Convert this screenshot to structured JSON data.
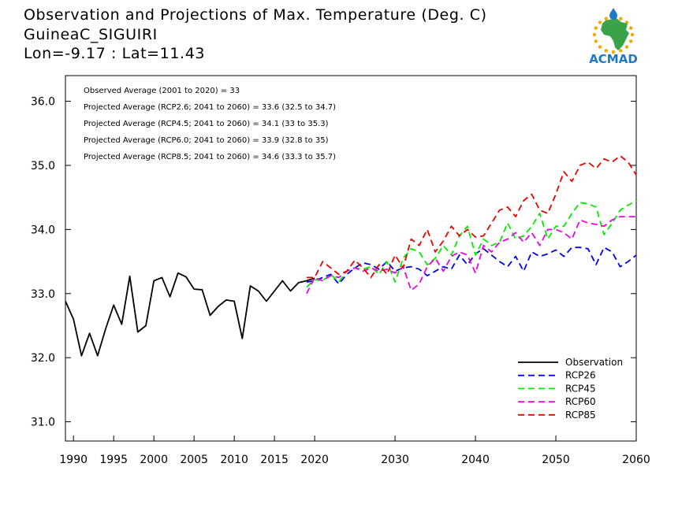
{
  "title": {
    "line1": "Observation and Projections of Max. Temperature (Deg. C)",
    "line2": "GuineaC_SIGUIRI",
    "line3": "Lon=-9.17 : Lat=11.43"
  },
  "logo": {
    "text": "ACMAD",
    "colors": {
      "africa": "#3aa34a",
      "ring": "#f2a900",
      "drop": "#1f77c9",
      "text": "#1f77c9"
    }
  },
  "chart_data": {
    "type": "line",
    "xlim": [
      1989,
      2060
    ],
    "ylim": [
      30.7,
      36.4
    ],
    "x_ticks": [
      1990,
      1995,
      2000,
      2005,
      2010,
      2015,
      2020,
      2030,
      2040,
      2050,
      2060
    ],
    "y_ticks": [
      31.0,
      32.0,
      33.0,
      34.0,
      35.0,
      36.0
    ],
    "y_tick_labels": [
      "31.0",
      "32.0",
      "33.0",
      "34.0",
      "35.0",
      "36.0"
    ],
    "annotations": [
      "Observed Average (2001 to 2020) = 33",
      "Projected Average (RCP2.6; 2041 to 2060) = 33.6 (32.5 to 34.7)",
      "Projected Average (RCP4.5; 2041 to 2060) = 34.1 (33 to 35.3)",
      "Projected Average (RCP6.0; 2041 to 2060) = 33.9 (32.8 to 35)",
      "Projected Average (RCP8.5; 2041 to 2060) = 34.6 (33.3 to 35.7)"
    ],
    "legend_position": "bottom-right",
    "series": [
      {
        "name": "Observation",
        "color": "#000000",
        "dash": false,
        "x": [
          1989,
          1990,
          1991,
          1992,
          1993,
          1994,
          1995,
          1996,
          1997,
          1998,
          1999,
          2000,
          2001,
          2002,
          2003,
          2004,
          2005,
          2006,
          2007,
          2008,
          2009,
          2010,
          2011,
          2012,
          2013,
          2014,
          2015,
          2016,
          2017,
          2018,
          2019,
          2020
        ],
        "values": [
          32.88,
          32.6,
          32.03,
          32.38,
          32.03,
          32.45,
          32.82,
          32.52,
          33.27,
          32.4,
          32.5,
          33.2,
          33.25,
          32.95,
          33.32,
          33.26,
          33.07,
          33.06,
          32.66,
          32.8,
          32.9,
          32.88,
          32.3,
          33.12,
          33.04,
          32.88,
          33.04,
          33.2,
          33.04,
          33.17,
          33.2,
          33.24
        ]
      },
      {
        "name": "RCP26",
        "color": "#0000ee",
        "dash": true,
        "x": [
          2019,
          2020,
          2021,
          2022,
          2023,
          2024,
          2025,
          2026,
          2027,
          2028,
          2029,
          2030,
          2031,
          2032,
          2033,
          2034,
          2035,
          2036,
          2037,
          2038,
          2039,
          2040,
          2041,
          2042,
          2043,
          2044,
          2045,
          2046,
          2047,
          2048,
          2049,
          2050,
          2051,
          2052,
          2053,
          2054,
          2055,
          2056,
          2057,
          2058,
          2059,
          2060
        ],
        "values": [
          33.18,
          33.2,
          33.25,
          33.3,
          33.15,
          33.3,
          33.4,
          33.48,
          33.45,
          33.38,
          33.5,
          33.35,
          33.4,
          33.42,
          33.38,
          33.28,
          33.35,
          33.42,
          33.38,
          33.6,
          33.45,
          33.62,
          33.7,
          33.6,
          33.5,
          33.42,
          33.58,
          33.35,
          33.65,
          33.58,
          33.62,
          33.68,
          33.58,
          33.72,
          33.72,
          33.7,
          33.45,
          33.72,
          33.65,
          33.42,
          33.5,
          33.6
        ]
      },
      {
        "name": "RCP45",
        "color": "#00ee00",
        "dash": true,
        "x": [
          2019,
          2020,
          2021,
          2022,
          2023,
          2024,
          2025,
          2026,
          2027,
          2028,
          2029,
          2030,
          2031,
          2032,
          2033,
          2034,
          2035,
          2036,
          2037,
          2038,
          2039,
          2040,
          2041,
          2042,
          2043,
          2044,
          2045,
          2046,
          2047,
          2048,
          2049,
          2050,
          2051,
          2052,
          2053,
          2054,
          2055,
          2056,
          2057,
          2058,
          2059,
          2060
        ],
        "values": [
          33.1,
          33.22,
          33.2,
          33.3,
          33.18,
          33.35,
          33.4,
          33.38,
          33.42,
          33.3,
          33.5,
          33.18,
          33.55,
          33.7,
          33.65,
          33.45,
          33.55,
          33.75,
          33.6,
          33.9,
          34.05,
          33.6,
          33.85,
          33.75,
          33.8,
          34.1,
          33.85,
          33.9,
          34.05,
          34.25,
          33.85,
          34.05,
          34.05,
          34.25,
          34.42,
          34.4,
          34.35,
          33.92,
          34.1,
          34.3,
          34.38,
          34.45
        ]
      },
      {
        "name": "RCP60",
        "color": "#ee00ee",
        "dash": true,
        "x": [
          2019,
          2020,
          2021,
          2022,
          2023,
          2024,
          2025,
          2026,
          2027,
          2028,
          2029,
          2030,
          2031,
          2032,
          2033,
          2034,
          2035,
          2036,
          2037,
          2038,
          2039,
          2040,
          2041,
          2042,
          2043,
          2044,
          2045,
          2046,
          2047,
          2048,
          2049,
          2050,
          2051,
          2052,
          2053,
          2054,
          2055,
          2056,
          2057,
          2058,
          2059,
          2060
        ],
        "values": [
          33.0,
          33.25,
          33.2,
          33.28,
          33.25,
          33.35,
          33.4,
          33.35,
          33.4,
          33.35,
          33.38,
          33.32,
          33.42,
          33.05,
          33.15,
          33.42,
          33.55,
          33.35,
          33.58,
          33.65,
          33.6,
          33.32,
          33.75,
          33.65,
          33.8,
          33.85,
          33.95,
          33.8,
          33.95,
          33.75,
          34.0,
          34.0,
          33.95,
          33.85,
          34.15,
          34.1,
          34.08,
          34.05,
          34.15,
          34.2,
          34.2,
          34.2
        ]
      },
      {
        "name": "RCP85",
        "color": "#ee0000",
        "dash": true,
        "x": [
          2019,
          2020,
          2021,
          2022,
          2023,
          2024,
          2025,
          2026,
          2027,
          2028,
          2029,
          2030,
          2031,
          2032,
          2033,
          2034,
          2035,
          2036,
          2037,
          2038,
          2039,
          2040,
          2041,
          2042,
          2043,
          2044,
          2045,
          2046,
          2047,
          2048,
          2049,
          2050,
          2051,
          2052,
          2053,
          2054,
          2055,
          2056,
          2057,
          2058,
          2059,
          2060
        ],
        "values": [
          33.25,
          33.25,
          33.5,
          33.4,
          33.3,
          33.35,
          33.52,
          33.4,
          33.25,
          33.45,
          33.3,
          33.6,
          33.4,
          33.85,
          33.75,
          34.0,
          33.65,
          33.82,
          34.05,
          33.9,
          34.0,
          33.88,
          33.9,
          34.1,
          34.3,
          34.35,
          34.2,
          34.45,
          34.55,
          34.3,
          34.25,
          34.55,
          34.9,
          34.75,
          35.0,
          35.05,
          34.95,
          35.1,
          35.05,
          35.15,
          35.05,
          34.85
        ]
      }
    ]
  }
}
